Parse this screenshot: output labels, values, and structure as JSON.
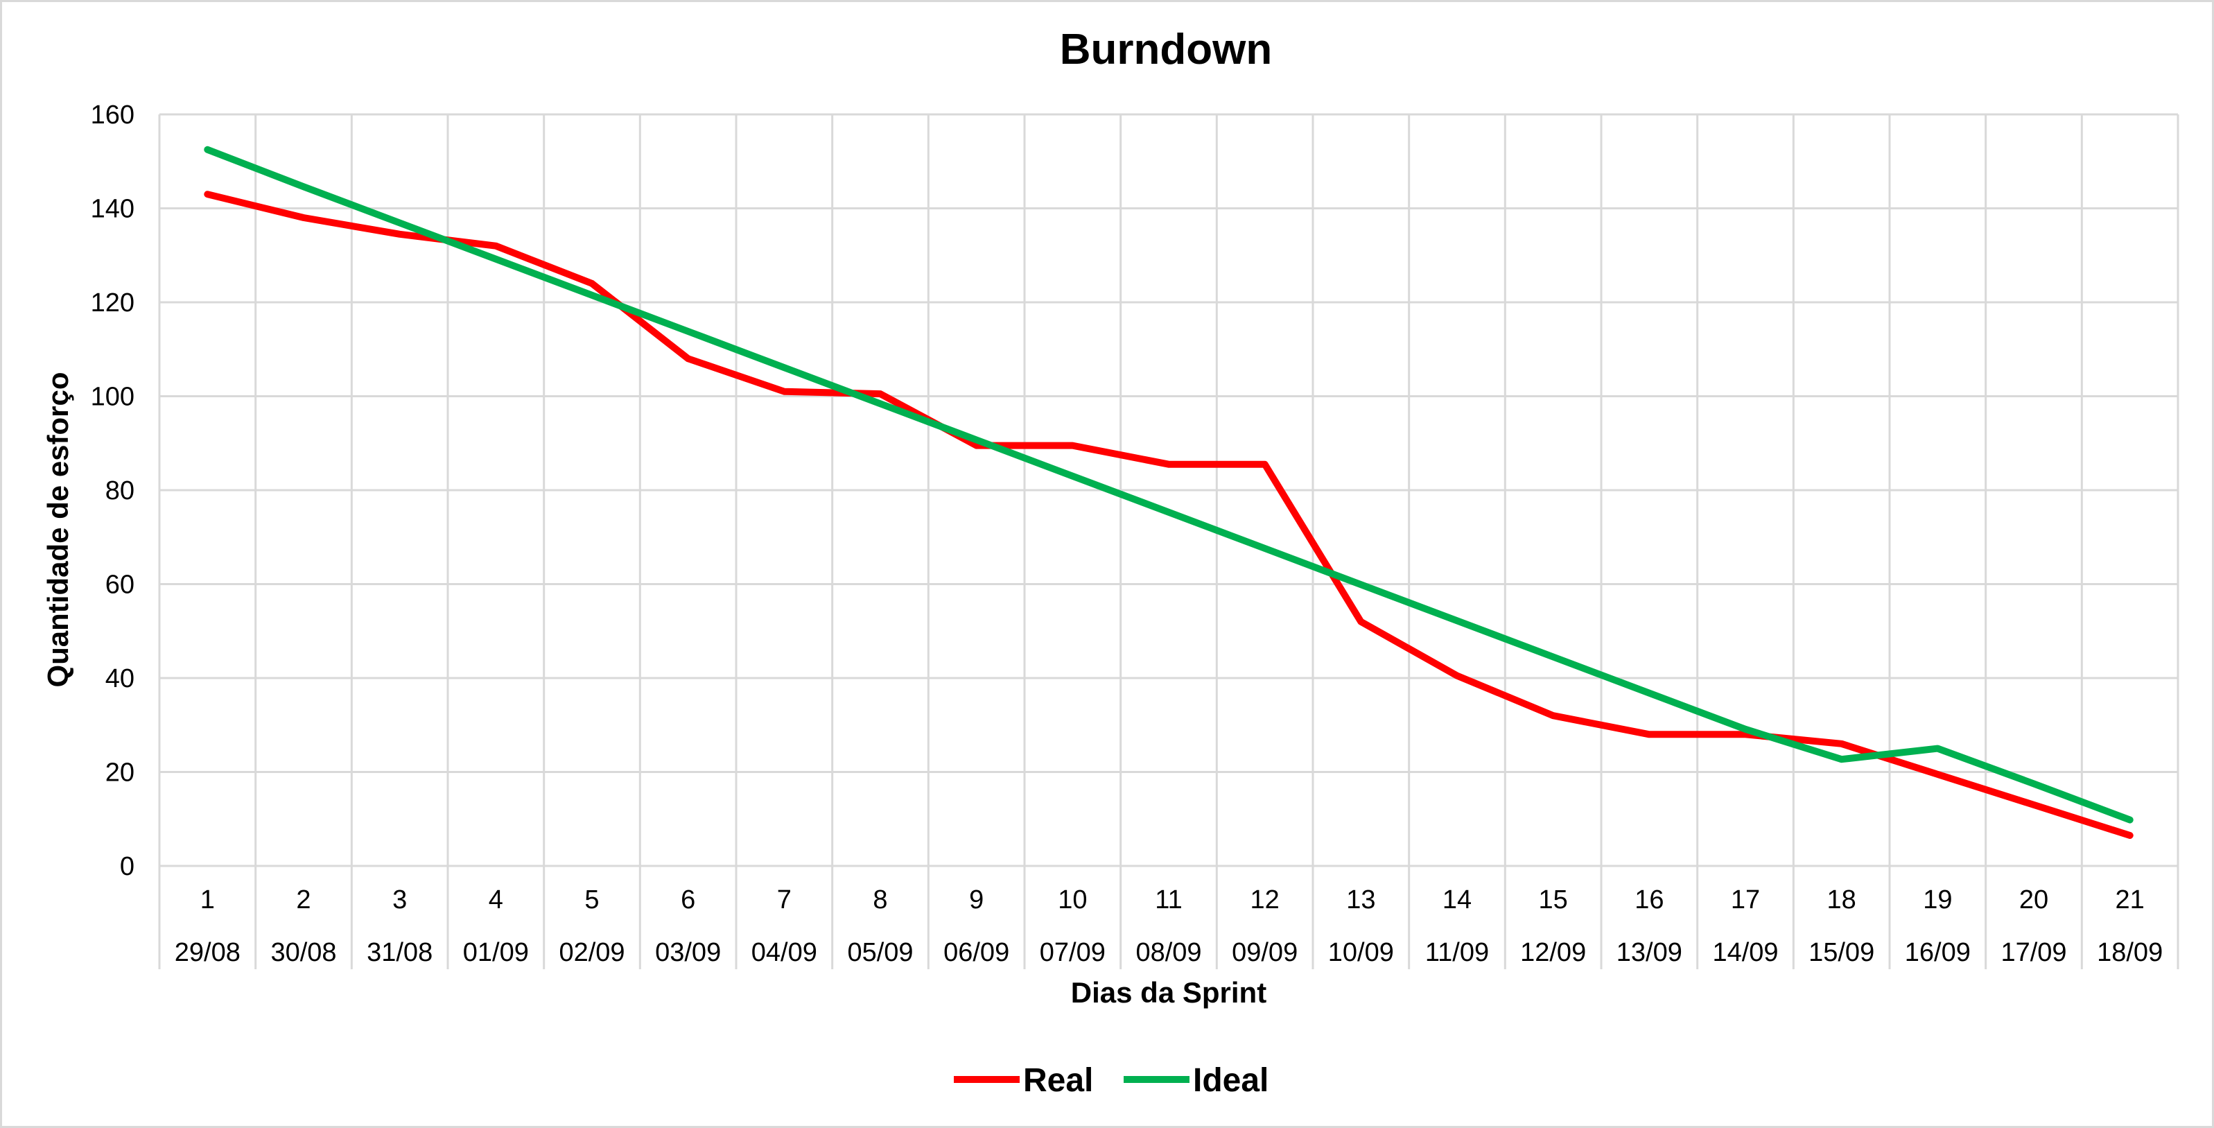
{
  "chart_data": {
    "type": "line",
    "title": "Burndown",
    "xlabel": "Dias da Sprint",
    "ylabel": "Quantidade de esforço",
    "ylim": [
      0,
      160
    ],
    "yticks": [
      0,
      20,
      40,
      60,
      80,
      100,
      120,
      140,
      160
    ],
    "grid": true,
    "legend_position": "bottom",
    "categories": [
      "1",
      "2",
      "3",
      "4",
      "5",
      "6",
      "7",
      "8",
      "9",
      "10",
      "11",
      "12",
      "13",
      "14",
      "15",
      "16",
      "17",
      "18",
      "19",
      "20",
      "21"
    ],
    "dates": [
      "29/08",
      "30/08",
      "31/08",
      "01/09",
      "02/09",
      "03/09",
      "04/09",
      "05/09",
      "06/09",
      "07/09",
      "08/09",
      "09/09",
      "10/09",
      "11/09",
      "12/09",
      "13/09",
      "14/09",
      "15/09",
      "16/09",
      "17/09",
      "18/09"
    ],
    "series": [
      {
        "name": "Real",
        "color": "#ff0000",
        "values": [
          143,
          138,
          134.5,
          132,
          124,
          108,
          101,
          100.5,
          89.5,
          89.5,
          85.5,
          85.5,
          52,
          40.5,
          32,
          28,
          28,
          26,
          19.5,
          13,
          6.5
        ]
      },
      {
        "name": "Ideal",
        "color": "#00b050",
        "values": [
          152.5,
          144.6,
          136.9,
          129.2,
          121.5,
          113.8,
          106.1,
          98.4,
          90.7,
          83.0,
          75.3,
          67.6,
          59.9,
          52.2,
          44.5,
          36.8,
          29.1,
          22.7,
          25,
          17.5,
          9.8
        ]
      }
    ]
  }
}
